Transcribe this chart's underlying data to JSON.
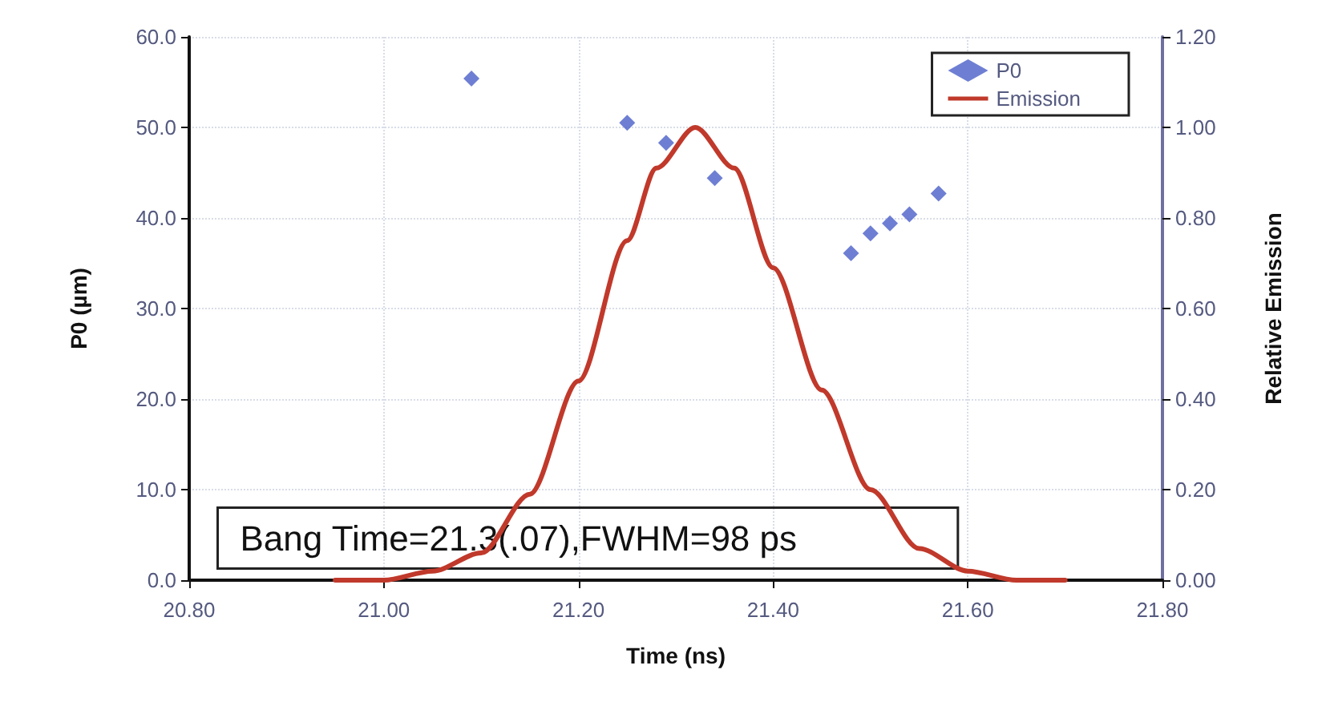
{
  "chart_data": {
    "type": "scatter",
    "xlabel": "Time (ns)",
    "ylabel": "P0 (µm)",
    "y2label": "Relative Emission",
    "xlim": [
      20.8,
      21.8
    ],
    "xticks": [
      {
        "value": 20.8,
        "label": "20.80"
      },
      {
        "value": 21.0,
        "label": "21.00"
      },
      {
        "value": 21.2,
        "label": "21.20"
      },
      {
        "value": 21.4,
        "label": "21.40"
      },
      {
        "value": 21.6,
        "label": "21.60"
      },
      {
        "value": 21.8,
        "label": "21.80"
      }
    ],
    "ylim": [
      0,
      60
    ],
    "yticks": [
      {
        "value": 0,
        "label": "0.0"
      },
      {
        "value": 10,
        "label": "10.0"
      },
      {
        "value": 20,
        "label": "20.0"
      },
      {
        "value": 30,
        "label": "30.0"
      },
      {
        "value": 40,
        "label": "40.0"
      },
      {
        "value": 50,
        "label": "50.0"
      },
      {
        "value": 60,
        "label": "60.0"
      }
    ],
    "y2lim": [
      0,
      1.2
    ],
    "y2ticks": [
      {
        "value": 0,
        "label": "0.00"
      },
      {
        "value": 0.2,
        "label": "0.20"
      },
      {
        "value": 0.4,
        "label": "0.40"
      },
      {
        "value": 0.6,
        "label": "0.60"
      },
      {
        "value": 0.8,
        "label": "0.80"
      },
      {
        "value": 1.0,
        "label": "1.00"
      },
      {
        "value": 1.2,
        "label": "1.20"
      }
    ],
    "series": [
      {
        "name": "P0",
        "color": "#4a5fc8",
        "marker": "diamond",
        "x": [
          21.09,
          21.25,
          21.29,
          21.34,
          21.48,
          21.5,
          21.52,
          21.54,
          21.57
        ],
        "values": [
          55.4,
          50.5,
          48.3,
          44.4,
          36.1,
          38.3,
          39.4,
          40.4,
          42.7
        ]
      },
      {
        "name": "Emission",
        "type": "line",
        "axis": "y2",
        "color": "#c0392b",
        "marker": "none",
        "line_style": "solid",
        "x": [
          20.95,
          21.0,
          21.05,
          21.1,
          21.15,
          21.2,
          21.25,
          21.28,
          21.32,
          21.36,
          21.4,
          21.45,
          21.5,
          21.55,
          21.6,
          21.65,
          21.7
        ],
        "values": [
          0,
          0.0,
          0.02,
          0.06,
          0.19,
          0.44,
          0.75,
          0.91,
          1.0,
          0.91,
          0.69,
          0.42,
          0.2,
          0.07,
          0.02,
          0.0,
          0
        ]
      }
    ],
    "annotations": [
      "Bang Time=21.3(.07),FWHM=98 ps"
    ],
    "grid": true,
    "legend": "top right"
  }
}
